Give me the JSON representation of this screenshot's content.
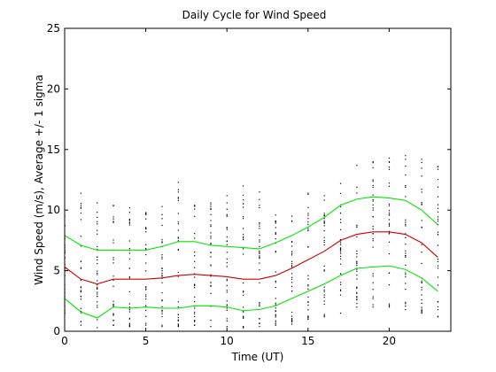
{
  "chart_data": {
    "type": "line",
    "title": "Daily Cycle for Wind Speed",
    "xlabel": "Time (UT)",
    "ylabel": "Wind Speed (m/s), Average +/- 1 sigma",
    "xlim": [
      0,
      23.8
    ],
    "ylim": [
      0,
      25
    ],
    "xticks": [
      0,
      5,
      10,
      15,
      20
    ],
    "yticks": [
      0,
      5,
      10,
      15,
      20,
      25
    ],
    "grid": false,
    "legend": "none",
    "colors": {
      "average": "#cc0000",
      "sigma": "#00e600",
      "points": "#000000",
      "axes": "#000000"
    },
    "x": [
      0,
      1,
      2,
      3,
      4,
      5,
      6,
      7,
      8,
      9,
      10,
      11,
      12,
      13,
      14,
      15,
      16,
      17,
      18,
      19,
      20,
      21,
      22,
      23
    ],
    "series": [
      {
        "role": "upper",
        "values": [
          7.9,
          7.1,
          6.7,
          6.7,
          6.7,
          6.7,
          7.0,
          7.4,
          7.4,
          7.1,
          7.0,
          6.9,
          6.8,
          7.3,
          7.9,
          8.6,
          9.4,
          10.4,
          10.9,
          11.1,
          11.0,
          10.8,
          10.0,
          8.8
        ]
      },
      {
        "role": "average",
        "values": [
          5.3,
          4.3,
          3.9,
          4.3,
          4.3,
          4.3,
          4.4,
          4.6,
          4.7,
          4.6,
          4.5,
          4.3,
          4.3,
          4.6,
          5.2,
          5.9,
          6.6,
          7.5,
          8.0,
          8.2,
          8.2,
          8.0,
          7.3,
          6.1
        ]
      },
      {
        "role": "lower",
        "values": [
          2.7,
          1.6,
          1.1,
          2.0,
          1.9,
          2.0,
          1.9,
          1.9,
          2.1,
          2.1,
          2.0,
          1.7,
          1.8,
          2.1,
          2.7,
          3.3,
          3.9,
          4.6,
          5.2,
          5.3,
          5.4,
          5.1,
          4.4,
          3.3
        ]
      }
    ],
    "samples": {
      "x": [
        0,
        1,
        2,
        3,
        4,
        5,
        6,
        7,
        8,
        9,
        10,
        11,
        12,
        13,
        14,
        15,
        16,
        17,
        18,
        19,
        20,
        21,
        22,
        23
      ],
      "min": [
        1.5,
        0.5,
        0.3,
        0.5,
        0.4,
        0.5,
        0.4,
        0.4,
        0.5,
        0.4,
        0.4,
        0.3,
        0.4,
        0.5,
        0.6,
        1.0,
        1.2,
        1.5,
        2.0,
        2.0,
        2.0,
        1.8,
        1.5,
        1.2
      ],
      "max": [
        9.5,
        11.4,
        10.6,
        10.4,
        10.2,
        9.8,
        10.3,
        12.3,
        10.4,
        10.6,
        11.2,
        12.0,
        11.5,
        9.6,
        9.5,
        11.4,
        11.2,
        12.2,
        13.7,
        14.0,
        14.3,
        14.5,
        14.2,
        13.6
      ]
    }
  }
}
